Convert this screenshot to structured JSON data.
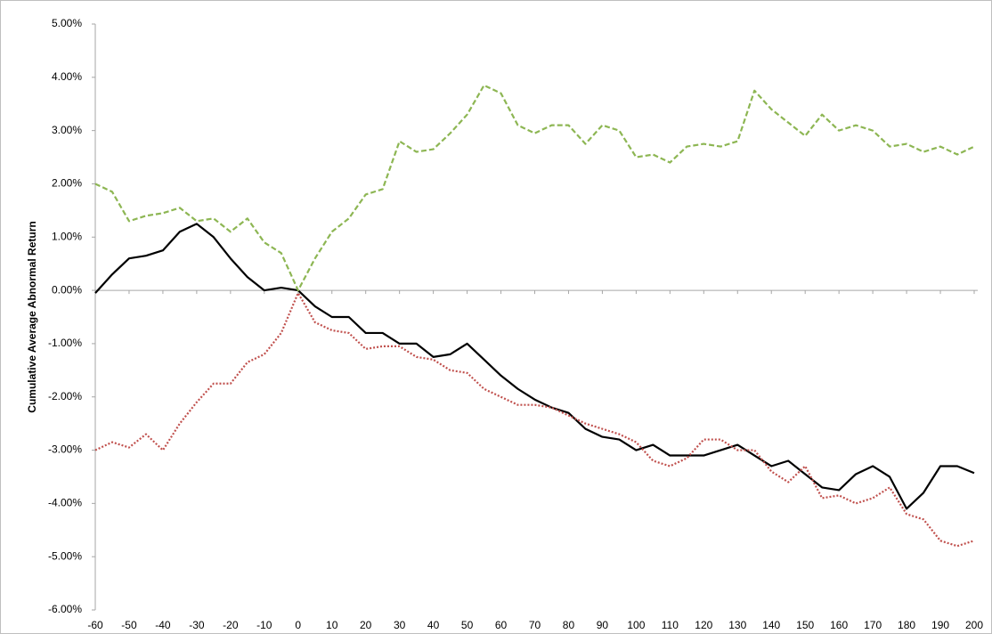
{
  "chart_data": {
    "type": "line",
    "y_label": "Cumulative Average Abnormal Return",
    "x": [
      -60,
      -55,
      -50,
      -45,
      -40,
      -35,
      -30,
      -25,
      -20,
      -15,
      -10,
      -5,
      0,
      5,
      10,
      15,
      20,
      25,
      30,
      35,
      40,
      45,
      50,
      55,
      60,
      65,
      70,
      75,
      80,
      85,
      90,
      95,
      100,
      105,
      110,
      115,
      120,
      125,
      130,
      135,
      140,
      145,
      150,
      155,
      160,
      165,
      170,
      175,
      180,
      185,
      190,
      195,
      200
    ],
    "series": [
      {
        "color": "#000000",
        "dash": "solid",
        "values": [
          -0.05,
          0.3,
          0.6,
          0.65,
          0.75,
          1.1,
          1.25,
          1.0,
          0.6,
          0.25,
          0.0,
          0.05,
          0.0,
          -0.3,
          -0.5,
          -0.5,
          -0.8,
          -0.8,
          -1.0,
          -1.0,
          -1.25,
          -1.2,
          -1.0,
          -1.3,
          -1.6,
          -1.85,
          -2.05,
          -2.2,
          -2.3,
          -2.6,
          -2.75,
          -2.8,
          -3.0,
          -2.9,
          -3.1,
          -3.1,
          -3.1,
          -3.0,
          -2.9,
          -3.1,
          -3.3,
          -3.2,
          -3.45,
          -3.7,
          -3.75,
          -3.45,
          -3.3,
          -3.5,
          -4.1,
          -3.8,
          -3.3,
          -3.3,
          -3.43
        ]
      },
      {
        "color": "#8db653",
        "dash": "dashed",
        "values": [
          2.0,
          1.85,
          1.3,
          1.4,
          1.45,
          1.55,
          1.3,
          1.35,
          1.1,
          1.35,
          0.9,
          0.7,
          0.0,
          0.6,
          1.1,
          1.35,
          1.8,
          1.9,
          2.8,
          2.6,
          2.65,
          2.95,
          3.3,
          3.85,
          3.7,
          3.1,
          2.95,
          3.1,
          3.1,
          2.75,
          3.1,
          3.0,
          2.5,
          2.55,
          2.4,
          2.7,
          2.75,
          2.7,
          2.8,
          3.75,
          3.4,
          3.15,
          2.9,
          3.3,
          3.0,
          3.1,
          3.0,
          2.7,
          2.75,
          2.6,
          2.7,
          2.55,
          2.7
        ]
      },
      {
        "color": "#c0504d",
        "dash": "dotted",
        "values": [
          -3.0,
          -2.85,
          -2.95,
          -2.7,
          -3.0,
          -2.5,
          -2.1,
          -1.75,
          -1.75,
          -1.35,
          -1.2,
          -0.8,
          -0.05,
          -0.6,
          -0.75,
          -0.8,
          -1.1,
          -1.05,
          -1.05,
          -1.25,
          -1.3,
          -1.5,
          -1.55,
          -1.85,
          -2.0,
          -2.15,
          -2.15,
          -2.2,
          -2.35,
          -2.5,
          -2.6,
          -2.7,
          -2.85,
          -3.2,
          -3.3,
          -3.15,
          -2.8,
          -2.8,
          -3.0,
          -3.0,
          -3.4,
          -3.6,
          -3.3,
          -3.9,
          -3.85,
          -4.0,
          -3.9,
          -3.7,
          -4.2,
          -4.3,
          -4.7,
          -4.8,
          -4.7
        ]
      }
    ],
    "xlim": [
      -60,
      200
    ],
    "xticks": [
      -60,
      -50,
      -40,
      -30,
      -20,
      -10,
      0,
      10,
      20,
      30,
      40,
      50,
      60,
      70,
      80,
      90,
      100,
      110,
      120,
      130,
      140,
      150,
      160,
      170,
      180,
      190,
      200
    ],
    "ylim": [
      -6,
      5
    ],
    "yticks": [
      {
        "value": -6,
        "label": "-6.00%"
      },
      {
        "value": -5,
        "label": "-5.00%"
      },
      {
        "value": -4,
        "label": "-4.00%"
      },
      {
        "value": -3,
        "label": "-3.00%"
      },
      {
        "value": -2,
        "label": "-2.00%"
      },
      {
        "value": -1,
        "label": "-1.00%"
      },
      {
        "value": 0,
        "label": "0.00%"
      },
      {
        "value": 1,
        "label": "1.00%"
      },
      {
        "value": 2,
        "label": "2.00%"
      },
      {
        "value": 3,
        "label": "3.00%"
      },
      {
        "value": 4,
        "label": "4.00%"
      },
      {
        "value": 5,
        "label": "5.00%"
      }
    ],
    "grid": false
  }
}
